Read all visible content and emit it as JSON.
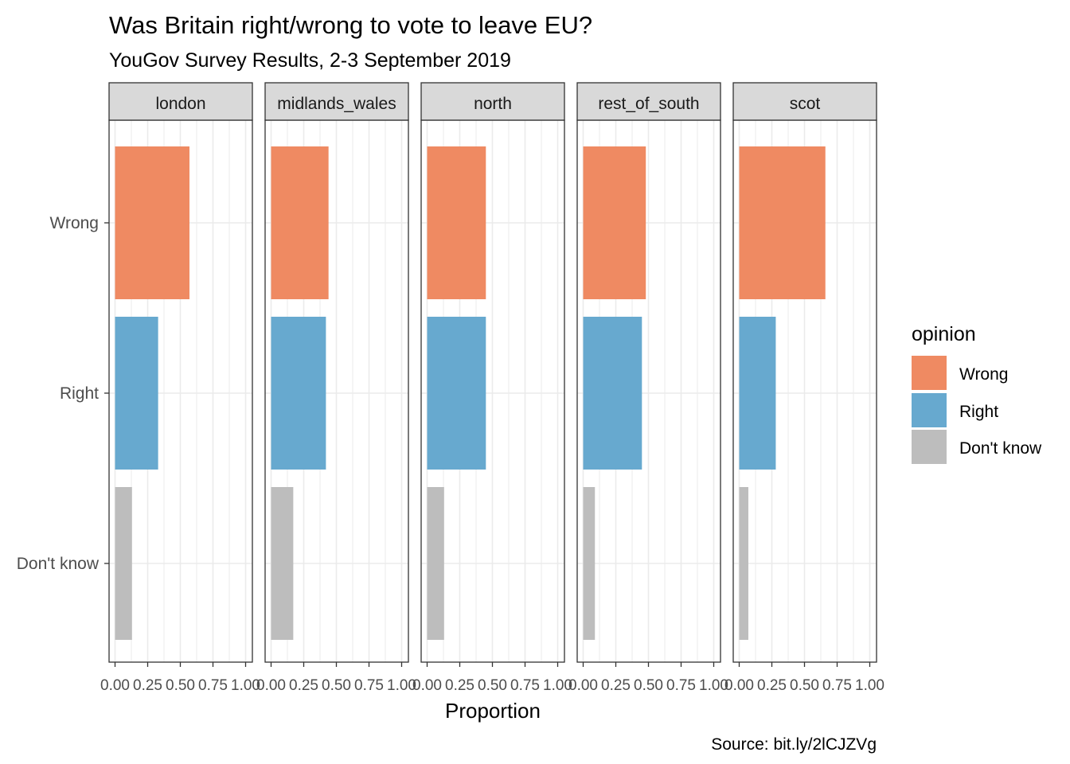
{
  "chart_data": {
    "type": "bar",
    "orientation": "horizontal",
    "title": "Was Britain right/wrong to vote to leave EU?",
    "subtitle": "YouGov Survey Results, 2-3 September 2019",
    "xlabel": "Proportion",
    "ylabel": "",
    "caption": "Source: bit.ly/2lCJZVg",
    "xlim": [
      0,
      1
    ],
    "x_ticks": [
      "0.00",
      "0.25",
      "0.50",
      "0.75",
      "1.00"
    ],
    "categories": [
      "Wrong",
      "Right",
      "Don't know"
    ],
    "legend": {
      "title": "opinion",
      "position": "right",
      "entries": [
        "Wrong",
        "Right",
        "Don't know"
      ]
    },
    "colors": {
      "Wrong": "#ef8a62",
      "Right": "#67a9cf",
      "Don't know": "#bdbdbd",
      "strip_fill": "#d9d9d9",
      "grid": "#ebebeb"
    },
    "grid": true,
    "facets": [
      {
        "name": "london",
        "values": {
          "Wrong": 0.57,
          "Right": 0.33,
          "Don't know": 0.13
        }
      },
      {
        "name": "midlands_wales",
        "values": {
          "Wrong": 0.44,
          "Right": 0.42,
          "Don't know": 0.17
        }
      },
      {
        "name": "north",
        "values": {
          "Wrong": 0.45,
          "Right": 0.45,
          "Don't know": 0.13
        }
      },
      {
        "name": "rest_of_south",
        "values": {
          "Wrong": 0.48,
          "Right": 0.45,
          "Don't know": 0.09
        }
      },
      {
        "name": "scot",
        "values": {
          "Wrong": 0.66,
          "Right": 0.28,
          "Don't know": 0.07
        }
      }
    ]
  }
}
